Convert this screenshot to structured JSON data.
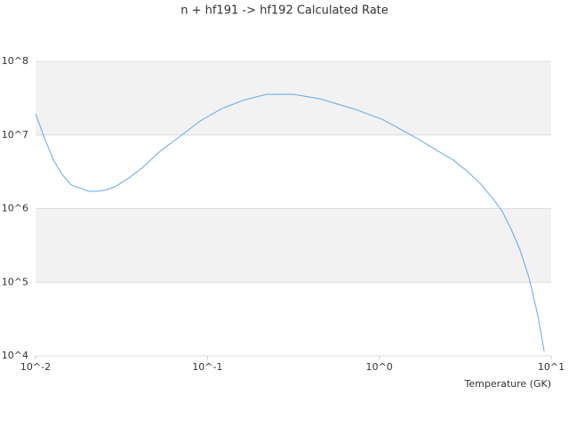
{
  "chart_data": {
    "type": "line",
    "title": "n + hf191 -> hf192 Calculated Rate",
    "x_label": "Temperature (GK)",
    "xscale": "log",
    "yscale": "log",
    "grid": true,
    "color": "#62a8e8",
    "x": [
      0.01,
      0.01127,
      0.01268,
      0.01429,
      0.0161,
      0.01816,
      0.0204,
      0.023,
      0.0259,
      0.0292,
      0.0349,
      0.0418,
      0.053,
      0.0673,
      0.0906,
      0.122,
      0.164,
      0.221,
      0.316,
      0.452,
      0.728,
      1.04,
      1.24,
      1.67,
      2.13,
      2.7,
      3.23,
      3.86,
      4.61,
      5.2,
      5.86,
      6.6,
      7.43,
      8.37,
      9.1
    ],
    "values": [
      19400000,
      9100000,
      4600000,
      2900000,
      2100000,
      1900000,
      1720000,
      1720000,
      1800000,
      2000000,
      2600000,
      3600000,
      6000000,
      9100000,
      15500000,
      23000000,
      30000000,
      35700000,
      35700000,
      31000000,
      22200000,
      16300000,
      13100000,
      8900000,
      6300000,
      4550000,
      3250000,
      2200000,
      1340000,
      910000,
      520000,
      270000,
      115000,
      35000,
      11500
    ],
    "xlim": [
      0.01,
      10
    ],
    "xticks": [
      {
        "value": 0.01,
        "label": "10^-2"
      },
      {
        "value": 0.1,
        "label": "10^-1"
      },
      {
        "value": 1,
        "label": "10^0"
      },
      {
        "value": 10,
        "label": "10^1"
      }
    ],
    "ylim": [
      10000,
      100000000
    ],
    "yticks": [
      {
        "value": 10000,
        "label": "10^4"
      },
      {
        "value": 100000,
        "label": "10^5"
      },
      {
        "value": 1000000,
        "label": "10^6"
      },
      {
        "value": 10000000,
        "label": "10^7"
      },
      {
        "value": 100000000,
        "label": "10^8"
      }
    ]
  }
}
